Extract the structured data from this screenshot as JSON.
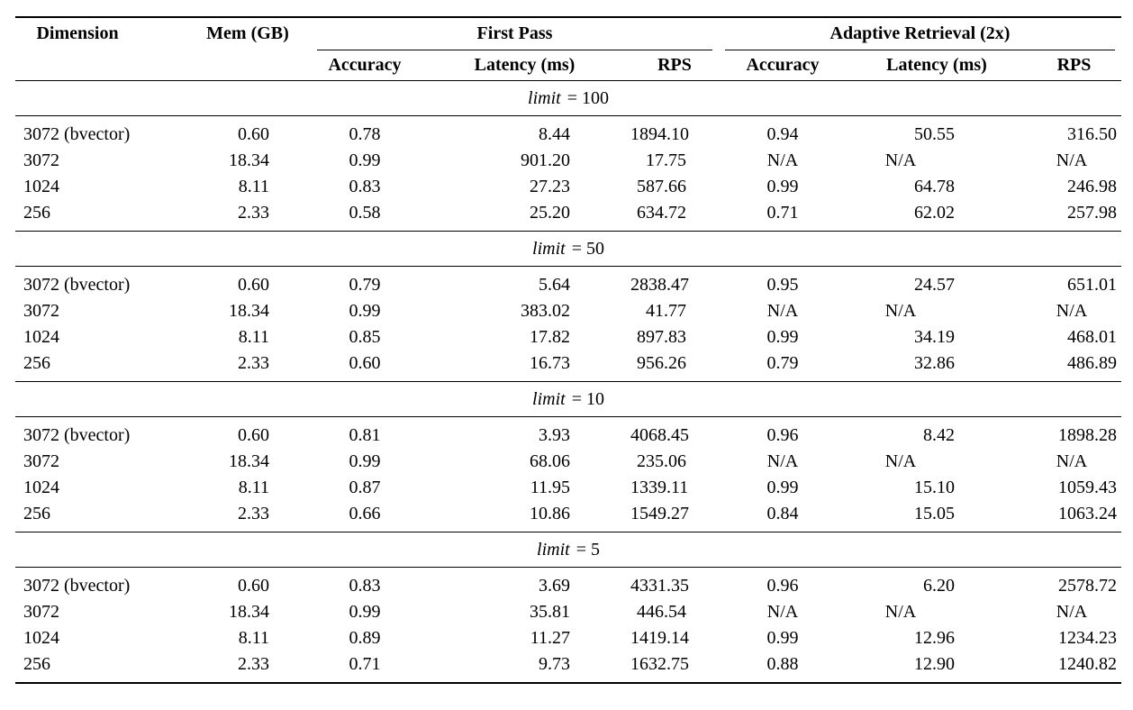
{
  "page": {
    "background_color": "#ffffff",
    "text_color": "#000000"
  },
  "table": {
    "col_headers": {
      "dimension": "Dimension",
      "mem": "Mem (GB)"
    },
    "groups": [
      {
        "label": "First Pass",
        "subheaders": [
          "Accuracy",
          "Latency (ms)",
          "RPS"
        ]
      },
      {
        "label": "Adaptive Retrieval (2x)",
        "subheaders": [
          "Accuracy",
          "Latency (ms)",
          "RPS"
        ]
      }
    ],
    "sections": [
      {
        "limit_italic": "limit",
        "limit_rest": "= 100",
        "rows": [
          [
            "3072 (bvector)",
            "0.60",
            "0.78",
            "8.44",
            "1894.10",
            "0.94",
            "50.55",
            "316.50"
          ],
          [
            "3072",
            "18.34",
            "0.99",
            "901.20",
            "17.75",
            "N/A",
            "N/A",
            "N/A"
          ],
          [
            "1024",
            "8.11",
            "0.83",
            "27.23",
            "587.66",
            "0.99",
            "64.78",
            "246.98"
          ],
          [
            "256",
            "2.33",
            "0.58",
            "25.20",
            "634.72",
            "0.71",
            "62.02",
            "257.98"
          ]
        ]
      },
      {
        "limit_italic": "limit",
        "limit_rest": "= 50",
        "rows": [
          [
            "3072 (bvector)",
            "0.60",
            "0.79",
            "5.64",
            "2838.47",
            "0.95",
            "24.57",
            "651.01"
          ],
          [
            "3072",
            "18.34",
            "0.99",
            "383.02",
            "41.77",
            "N/A",
            "N/A",
            "N/A"
          ],
          [
            "1024",
            "8.11",
            "0.85",
            "17.82",
            "897.83",
            "0.99",
            "34.19",
            "468.01"
          ],
          [
            "256",
            "2.33",
            "0.60",
            "16.73",
            "956.26",
            "0.79",
            "32.86",
            "486.89"
          ]
        ]
      },
      {
        "limit_italic": "limit",
        "limit_rest": "= 10",
        "rows": [
          [
            "3072 (bvector)",
            "0.60",
            "0.81",
            "3.93",
            "4068.45",
            "0.96",
            "8.42",
            "1898.28"
          ],
          [
            "3072",
            "18.34",
            "0.99",
            "68.06",
            "235.06",
            "N/A",
            "N/A",
            "N/A"
          ],
          [
            "1024",
            "8.11",
            "0.87",
            "11.95",
            "1339.11",
            "0.99",
            "15.10",
            "1059.43"
          ],
          [
            "256",
            "2.33",
            "0.66",
            "10.86",
            "1549.27",
            "0.84",
            "15.05",
            "1063.24"
          ]
        ]
      },
      {
        "limit_italic": "limit",
        "limit_rest": "= 5",
        "rows": [
          [
            "3072 (bvector)",
            "0.60",
            "0.83",
            "3.69",
            "4331.35",
            "0.96",
            "6.20",
            "2578.72"
          ],
          [
            "3072",
            "18.34",
            "0.99",
            "35.81",
            "446.54",
            "N/A",
            "N/A",
            "N/A"
          ],
          [
            "1024",
            "8.11",
            "0.89",
            "11.27",
            "1419.14",
            "0.99",
            "12.96",
            "1234.23"
          ],
          [
            "256",
            "2.33",
            "0.71",
            "9.73",
            "1632.75",
            "0.88",
            "12.90",
            "1240.82"
          ]
        ]
      }
    ]
  }
}
